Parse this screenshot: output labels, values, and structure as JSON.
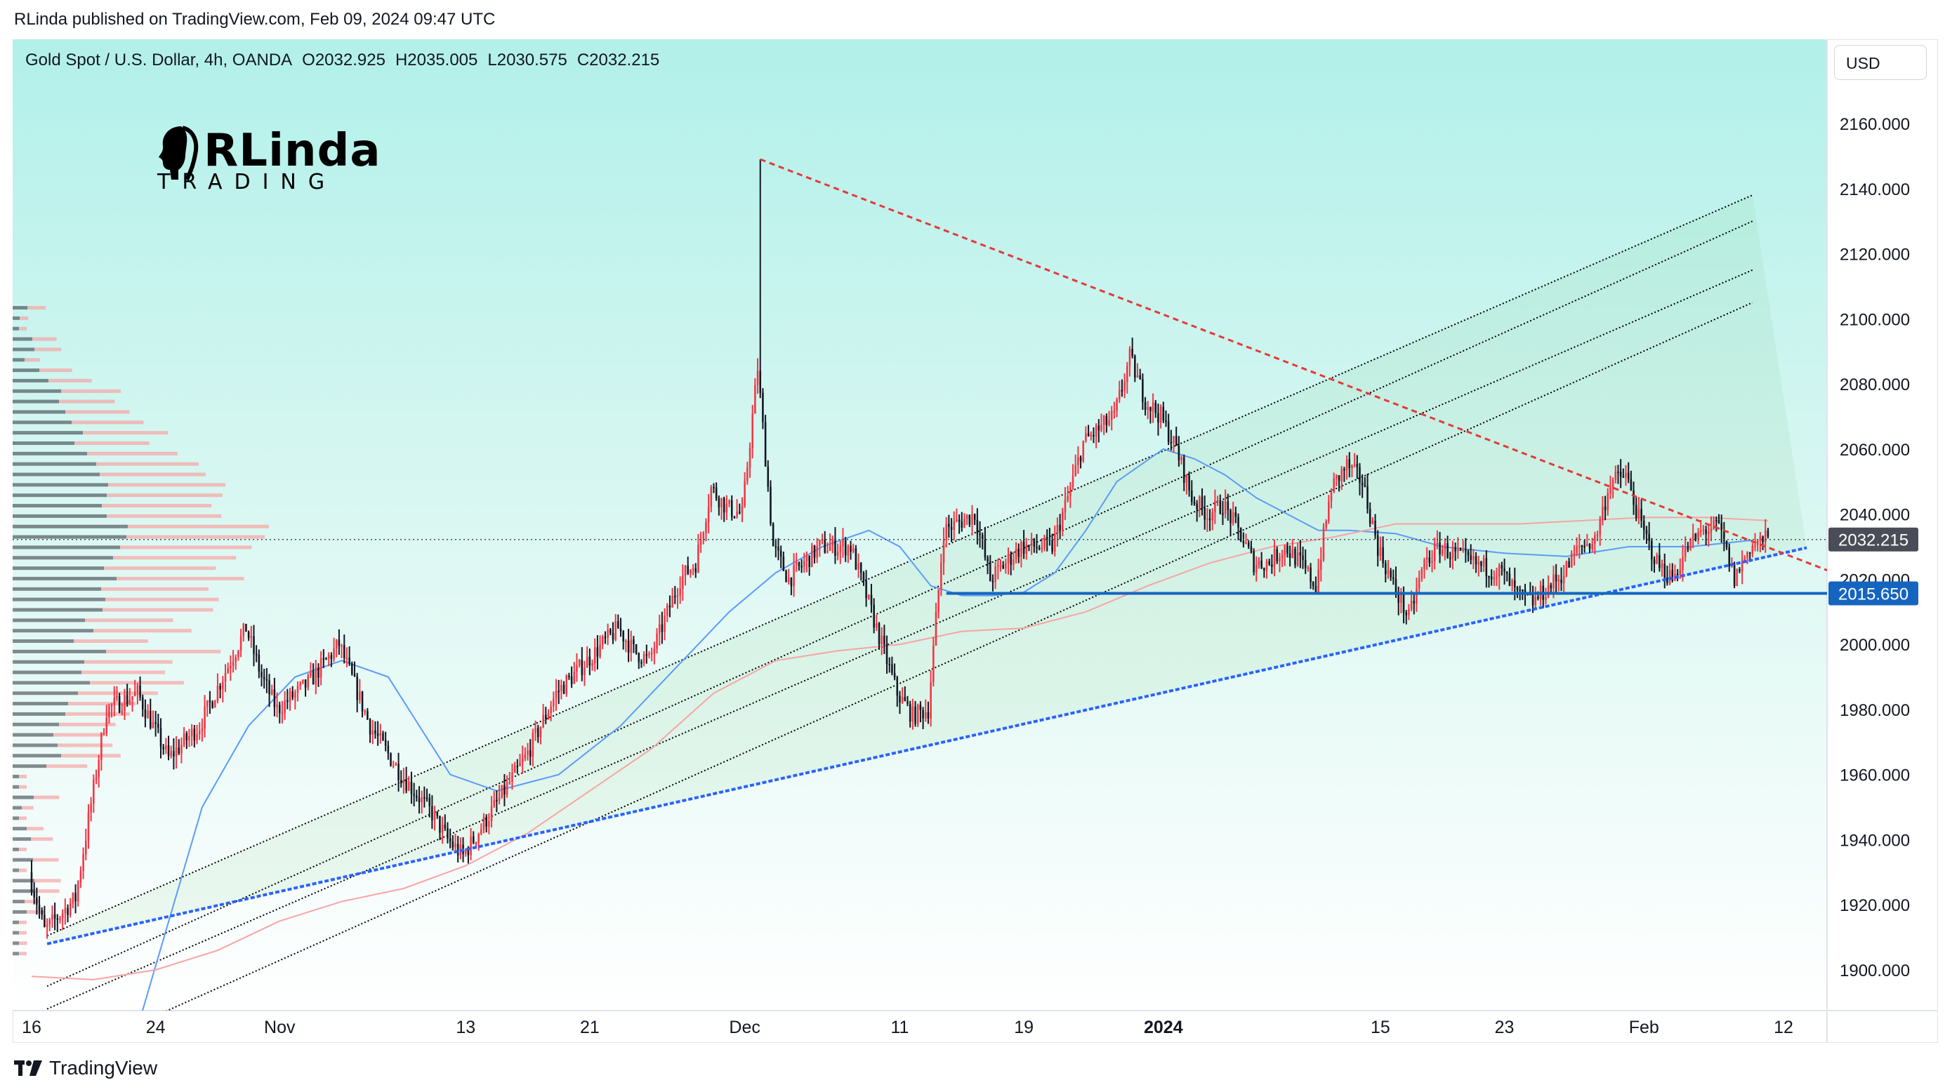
{
  "header": {
    "published_by": "RLinda published on TradingView.com, Feb 09, 2024 09:47 UTC"
  },
  "legend": {
    "symbol": "Gold Spot / U.S. Dollar, 4h, OANDA",
    "open": "O2032.925",
    "high": "H2035.005",
    "low": "L2030.575",
    "close": "C2032.215"
  },
  "currency": "USD",
  "logo": {
    "name": "RLinda",
    "sub": "TRADING"
  },
  "footer": {
    "brand": "TradingView"
  },
  "colors": {
    "background_top": "#b2f0ea",
    "background_bottom": "#ffffff",
    "bull": "#f23645",
    "bear": "#131722",
    "ma_fast": "#5b9cf6",
    "ma_slow": "#f7a4a4",
    "resistance": "#e53935",
    "support": "#2962ff",
    "channel": "#000000",
    "accent": "#1565c0"
  },
  "chart_data": {
    "type": "candlestick",
    "title": "",
    "y_axis": {
      "ticks": [
        "2160.000",
        "2140.000",
        "2120.000",
        "2100.000",
        "2080.000",
        "2060.000",
        "2040.000",
        "2020.000",
        "2000.000",
        "1980.000",
        "1960.000",
        "1940.000",
        "1920.000",
        "1900.000"
      ],
      "ylim": [
        1885,
        2175
      ]
    },
    "x_axis": {
      "ticks": [
        {
          "label": "16",
          "t": 0
        },
        {
          "label": "24",
          "t": 8
        },
        {
          "label": "Nov",
          "t": 16
        },
        {
          "label": "13",
          "t": 28
        },
        {
          "label": "21",
          "t": 36
        },
        {
          "label": "Dec",
          "t": 46
        },
        {
          "label": "11",
          "t": 56
        },
        {
          "label": "19",
          "t": 64
        },
        {
          "label": "2024",
          "t": 73,
          "bold": true
        },
        {
          "label": "15",
          "t": 87
        },
        {
          "label": "23",
          "t": 95
        },
        {
          "label": "Feb",
          "t": 104
        },
        {
          "label": "12",
          "t": 113
        }
      ],
      "xlim": [
        -0.5,
        120.5
      ],
      "unit": "days since Oct 16, 2023"
    },
    "price_labels": [
      {
        "value": 2032.215,
        "text": "2032.215",
        "style": "current"
      },
      {
        "value": 2015.65,
        "text": "2015.650",
        "style": "level"
      }
    ],
    "keypoints": [
      [
        0,
        1930
      ],
      [
        1,
        1912
      ],
      [
        3,
        1922
      ],
      [
        5,
        1980
      ],
      [
        7,
        1985
      ],
      [
        9,
        1965
      ],
      [
        11,
        1975
      ],
      [
        13,
        1995
      ],
      [
        14,
        2005
      ],
      [
        15,
        1990
      ],
      [
        16,
        1980
      ],
      [
        18,
        1988
      ],
      [
        20,
        2000
      ],
      [
        22,
        1975
      ],
      [
        24,
        1960
      ],
      [
        26,
        1948
      ],
      [
        27,
        1940
      ],
      [
        28,
        1935
      ],
      [
        30,
        1950
      ],
      [
        32,
        1965
      ],
      [
        34,
        1985
      ],
      [
        36,
        1995
      ],
      [
        38,
        2005
      ],
      [
        39,
        1998
      ],
      [
        40,
        1995
      ],
      [
        42,
        2020
      ],
      [
        43,
        2025
      ],
      [
        44,
        2048
      ],
      [
        45,
        2042
      ],
      [
        46,
        2040
      ],
      [
        47,
        2085
      ],
      [
        48,
        2030
      ],
      [
        49,
        2020
      ],
      [
        51,
        2030
      ],
      [
        53,
        2030
      ],
      [
        55,
        2000
      ],
      [
        56,
        1985
      ],
      [
        57,
        1978
      ],
      [
        58,
        1980
      ],
      [
        59,
        2035
      ],
      [
        61,
        2040
      ],
      [
        62,
        2020
      ],
      [
        64,
        2030
      ],
      [
        66,
        2030
      ],
      [
        67,
        2045
      ],
      [
        68,
        2062
      ],
      [
        70,
        2070
      ],
      [
        71,
        2088
      ],
      [
        72,
        2075
      ],
      [
        73,
        2070
      ],
      [
        74,
        2060
      ],
      [
        75,
        2045
      ],
      [
        76,
        2040
      ],
      [
        77,
        2043
      ],
      [
        78,
        2035
      ],
      [
        79,
        2025
      ],
      [
        80,
        2025
      ],
      [
        81,
        2030
      ],
      [
        82,
        2025
      ],
      [
        83,
        2018
      ],
      [
        84,
        2048
      ],
      [
        85,
        2055
      ],
      [
        86,
        2050
      ],
      [
        87,
        2030
      ],
      [
        88,
        2018
      ],
      [
        89,
        2008
      ],
      [
        90,
        2025
      ],
      [
        91,
        2030
      ],
      [
        93,
        2025
      ],
      [
        95,
        2022
      ],
      [
        96,
        2015
      ],
      [
        97,
        2013
      ],
      [
        99,
        2022
      ],
      [
        100,
        2030
      ],
      [
        101,
        2032
      ],
      [
        102,
        2050
      ],
      [
        103,
        2052
      ],
      [
        104,
        2036
      ],
      [
        105,
        2025
      ],
      [
        106,
        2020
      ],
      [
        107,
        2030
      ],
      [
        108,
        2035
      ],
      [
        109,
        2036
      ],
      [
        110,
        2020
      ],
      [
        111,
        2030
      ],
      [
        112,
        2032.215
      ]
    ],
    "spike": {
      "t": 47,
      "high": 2149
    },
    "moving_averages": [
      {
        "name": "fast",
        "color": "#5b9cf6",
        "points": [
          [
            7,
            1885
          ],
          [
            11,
            1950
          ],
          [
            14,
            1975
          ],
          [
            17,
            1990
          ],
          [
            20,
            1995
          ],
          [
            23,
            1990
          ],
          [
            25,
            1975
          ],
          [
            27,
            1960
          ],
          [
            30,
            1955
          ],
          [
            34,
            1960
          ],
          [
            38,
            1975
          ],
          [
            42,
            1995
          ],
          [
            45,
            2010
          ],
          [
            48,
            2022
          ],
          [
            51,
            2030
          ],
          [
            54,
            2035
          ],
          [
            56,
            2030
          ],
          [
            58,
            2018
          ],
          [
            60,
            2015
          ],
          [
            62,
            2015
          ],
          [
            64,
            2016
          ],
          [
            66,
            2022
          ],
          [
            68,
            2035
          ],
          [
            70,
            2050
          ],
          [
            73,
            2060
          ],
          [
            75,
            2057
          ],
          [
            77,
            2052
          ],
          [
            79,
            2045
          ],
          [
            81,
            2040
          ],
          [
            83,
            2035
          ],
          [
            85,
            2035
          ],
          [
            88,
            2034
          ],
          [
            91,
            2030
          ],
          [
            95,
            2028
          ],
          [
            99,
            2027
          ],
          [
            103,
            2030
          ],
          [
            107,
            2030
          ],
          [
            111,
            2032
          ]
        ]
      },
      {
        "name": "slow",
        "color": "#f7a4a4",
        "points": [
          [
            0,
            1898
          ],
          [
            4,
            1897
          ],
          [
            8,
            1900
          ],
          [
            12,
            1906
          ],
          [
            16,
            1915
          ],
          [
            20,
            1921
          ],
          [
            24,
            1925
          ],
          [
            28,
            1932
          ],
          [
            32,
            1942
          ],
          [
            36,
            1955
          ],
          [
            40,
            1968
          ],
          [
            44,
            1985
          ],
          [
            48,
            1995
          ],
          [
            52,
            1998
          ],
          [
            56,
            2000
          ],
          [
            60,
            2004
          ],
          [
            64,
            2005
          ],
          [
            68,
            2010
          ],
          [
            72,
            2018
          ],
          [
            76,
            2025
          ],
          [
            80,
            2030
          ],
          [
            84,
            2033
          ],
          [
            88,
            2037
          ],
          [
            92,
            2037
          ],
          [
            96,
            2037
          ],
          [
            100,
            2038
          ],
          [
            104,
            2039
          ],
          [
            108,
            2039
          ],
          [
            112,
            2038
          ]
        ]
      }
    ],
    "drawings": {
      "support_line": {
        "from": [
          1,
          1908
        ],
        "to": [
          112,
          2027
        ],
        "extend_to": 114.5
      },
      "resistance_line": {
        "from": [
          47,
          2149
        ],
        "to": [
          114.5,
          2025
        ]
      },
      "horizontal_level": {
        "from": 59,
        "value": 2015.65
      },
      "channel_lines": [
        {
          "from": [
            1,
            1910.5
          ],
          "to": [
            111,
            2138
          ]
        },
        {
          "from": [
            1,
            1895
          ],
          "to": [
            111,
            2130
          ]
        },
        {
          "from": [
            1,
            1888
          ],
          "to": [
            111,
            2115
          ]
        },
        {
          "from": [
            1,
            1871
          ],
          "to": [
            111,
            2105
          ]
        }
      ]
    },
    "volume_profile": "visible-range histogram on left edge, peak near 2032"
  }
}
